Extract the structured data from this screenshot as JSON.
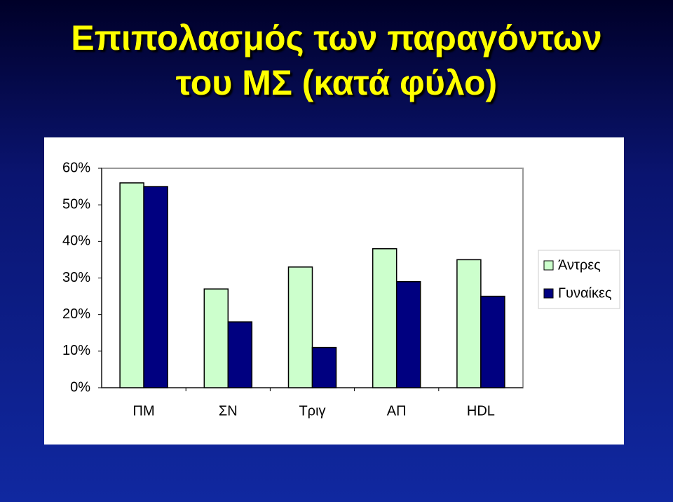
{
  "chart_data": {
    "type": "bar",
    "title": "Επιπολασμός των παραγόντων\nτου ΜΣ (κατά φύλο)",
    "categories": [
      "ΠΜ",
      "ΣΝ",
      "Τριγ",
      "ΑΠ",
      "HDL"
    ],
    "series": [
      {
        "name": "Άντρες",
        "color": "#ccffcc",
        "values": [
          56,
          27,
          33,
          38,
          35
        ]
      },
      {
        "name": "Γυναίκες",
        "color": "#000080",
        "values": [
          55,
          18,
          11,
          29,
          25
        ]
      }
    ],
    "ylim": [
      0,
      60
    ],
    "yticks": [
      {
        "value": 0,
        "label": "0%"
      },
      {
        "value": 10,
        "label": "10%"
      },
      {
        "value": 20,
        "label": "20%"
      },
      {
        "value": 30,
        "label": "30%"
      },
      {
        "value": 40,
        "label": "40%"
      },
      {
        "value": 50,
        "label": "50%"
      },
      {
        "value": 60,
        "label": "60%"
      }
    ],
    "grid": false,
    "legend": "right"
  }
}
